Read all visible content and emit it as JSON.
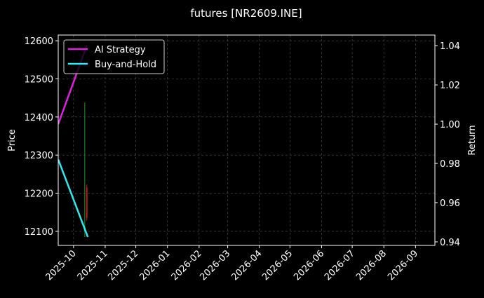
{
  "chart_data": {
    "type": "line",
    "title": "futures [NR2609.INE]",
    "ylabel": "Price",
    "y2label": "Return",
    "xlim": [
      "2025-09-16",
      "2026-09-20"
    ],
    "xticks": [
      "2025-10",
      "2025-11",
      "2025-12",
      "2026-01",
      "2026-02",
      "2026-03",
      "2026-04",
      "2026-05",
      "2026-06",
      "2026-07",
      "2026-08",
      "2026-09"
    ],
    "ylim": [
      12063,
      12615
    ],
    "yticks": [
      12100,
      12200,
      12300,
      12400,
      12500,
      12600
    ],
    "y2lim": [
      0.9382,
      1.0454
    ],
    "y2ticks": [
      {
        "value": 0.94,
        "label": "0.94"
      },
      {
        "value": 0.96,
        "label": "0.96"
      },
      {
        "value": 0.98,
        "label": "0.98"
      },
      {
        "value": 1.0,
        "label": "1.00"
      },
      {
        "value": 1.02,
        "label": "1.02"
      },
      {
        "value": 1.04,
        "label": "1.04"
      }
    ],
    "grid": true,
    "legend": "upper left",
    "series": [
      {
        "name": "AI Strategy",
        "color": "#e020e0",
        "axis": "y2",
        "x": [
          "2025-09-16",
          "2025-10-14"
        ],
        "values": [
          1.0,
          1.04
        ]
      },
      {
        "name": "Buy-and-Hold",
        "color": "#30e8f0",
        "axis": "y2",
        "x": [
          "2025-09-16",
          "2025-10-15"
        ],
        "values": [
          0.982,
          0.9425
        ]
      }
    ],
    "candles": {
      "x": [
        "2025-10-12",
        "2025-10-14"
      ],
      "open": [
        12100,
        12215
      ],
      "high": [
        12438,
        12223
      ],
      "low": [
        12085,
        12128
      ],
      "close": [
        12110,
        12135
      ],
      "up_color": "#1f9a1f",
      "down_color": "#c01818"
    }
  }
}
